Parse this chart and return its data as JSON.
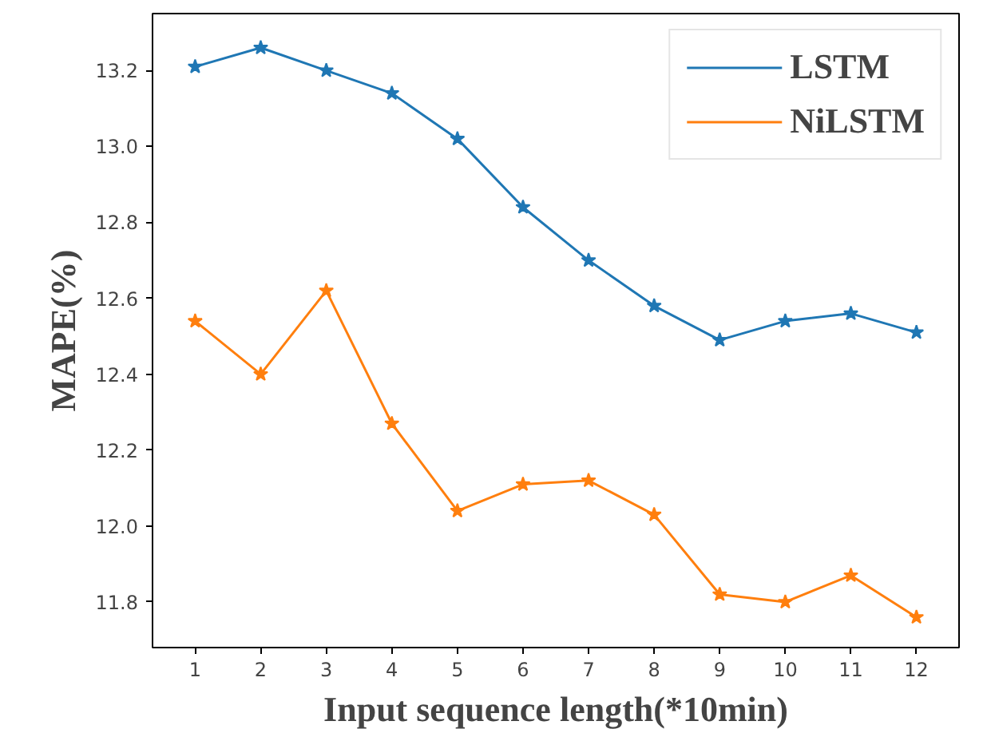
{
  "chart_data": {
    "type": "line",
    "xlabel": "Input sequence length(*10min)",
    "ylabel": "MAPE(%)",
    "x": [
      1,
      2,
      3,
      4,
      5,
      6,
      7,
      8,
      9,
      10,
      11,
      12
    ],
    "series": [
      {
        "name": "LSTM",
        "color": "#1f77b4",
        "values": [
          13.21,
          13.26,
          13.2,
          13.14,
          13.02,
          12.84,
          12.7,
          12.58,
          12.49,
          12.54,
          12.56,
          12.51
        ]
      },
      {
        "name": "NiLSTM",
        "color": "#ff7f0e",
        "values": [
          12.54,
          12.4,
          12.62,
          12.27,
          12.04,
          12.11,
          12.12,
          12.03,
          11.82,
          11.8,
          11.87,
          11.76
        ]
      }
    ],
    "xlim": [
      0.35,
      12.65
    ],
    "xticks": [
      1,
      2,
      3,
      4,
      5,
      6,
      7,
      8,
      9,
      10,
      11,
      12
    ],
    "ylim": [
      11.68,
      13.35
    ],
    "yticks": [
      {
        "value": 11.8,
        "label": "11.8"
      },
      {
        "value": 12.0,
        "label": "12.0"
      },
      {
        "value": 12.2,
        "label": "12.2"
      },
      {
        "value": 12.4,
        "label": "12.4"
      },
      {
        "value": 12.6,
        "label": "12.6"
      },
      {
        "value": 12.8,
        "label": "12.8"
      },
      {
        "value": 13.0,
        "label": "13.0"
      },
      {
        "value": 13.2,
        "label": "13.2"
      }
    ],
    "marker": "star",
    "line_style": "solid",
    "legend": "top right",
    "grid": false
  }
}
